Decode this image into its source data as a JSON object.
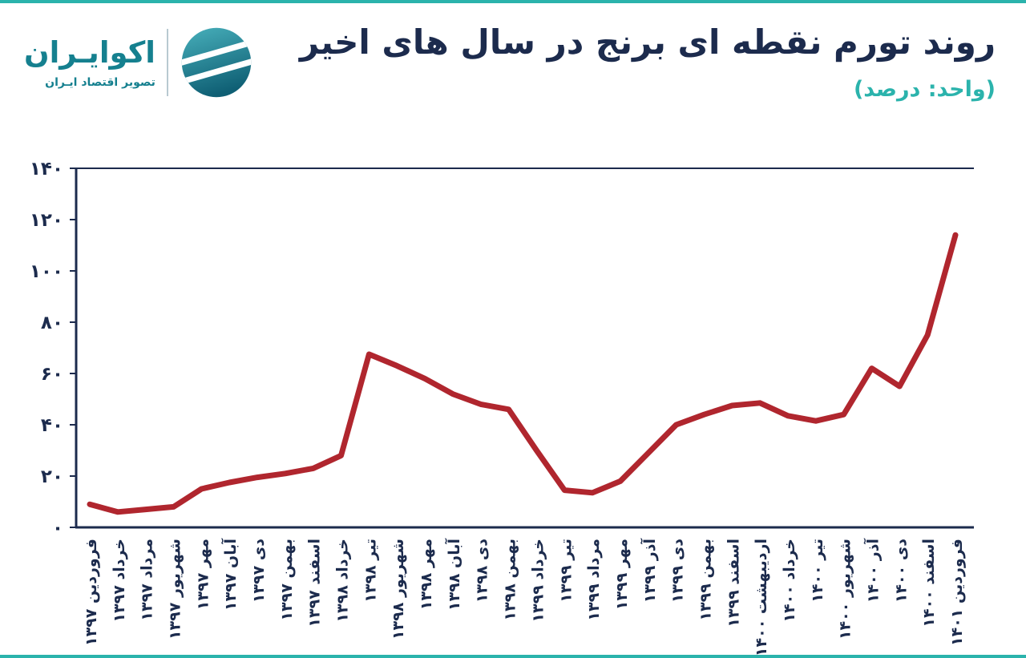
{
  "header": {
    "title": "روند تورم نقطه ای برنج در سال های اخیر",
    "unit_label": "(واحد: درصد)",
    "logo": {
      "name": "اکوایـران",
      "tagline": "تصویر اقتصاد ایـران",
      "mark": "ecoiran-circle-swoosh-icon"
    }
  },
  "colors": {
    "accent_teal": "#2bb3ac",
    "axis_navy": "#1c2b4d",
    "line_red": "#b0262e",
    "logo_teal": "#15808f",
    "background": "#ffffff"
  },
  "chart_data": {
    "type": "line",
    "title": "روند تورم نقطه ای برنج در سال های اخیر",
    "unit": "درصد",
    "categories": [
      "فروردین ۱۳۹۷",
      "خرداد ۱۳۹۷",
      "مرداد ۱۳۹۷",
      "شهریور ۱۳۹۷",
      "مهر ۱۳۹۷",
      "آبان ۱۳۹۷",
      "دی ۱۳۹۷",
      "بهمن ۱۳۹۷",
      "اسفند ۱۳۹۷",
      "خرداد ۱۳۹۸",
      "تیر ۱۳۹۸",
      "شهریور ۱۳۹۸",
      "مهر ۱۳۹۸",
      "آبان ۱۳۹۸",
      "دی ۱۳۹۸",
      "بهمن ۱۳۹۸",
      "خرداد ۱۳۹۹",
      "تیر ۱۳۹۹",
      "مرداد ۱۳۹۹",
      "مهر ۱۳۹۹",
      "آذر ۱۳۹۹",
      "دی ۱۳۹۹",
      "بهمن ۱۳۹۹",
      "اسفند ۱۳۹۹",
      "اردیبهشت ۱۴۰۰",
      "خرداد ۱۴۰۰",
      "تیر ۱۴۰۰",
      "شهریور ۱۴۰۰",
      "آذر ۱۴۰۰",
      "دی ۱۴۰۰",
      "اسفند ۱۴۰۰",
      "فروردین ۱۴۰۱"
    ],
    "values": [
      9,
      6,
      7,
      8,
      15,
      17.5,
      19.5,
      21,
      23,
      28,
      67.5,
      63,
      58,
      52,
      48,
      46,
      30,
      14.5,
      13.5,
      18,
      29,
      40,
      44,
      47.5,
      48.5,
      43.5,
      41.5,
      44,
      62,
      55,
      75,
      114
    ],
    "ylim": [
      0,
      140
    ],
    "y_ticks": [
      0,
      20,
      40,
      60,
      80,
      100,
      120,
      140
    ],
    "y_tick_labels": [
      "۰",
      "۲۰",
      "۴۰",
      "۶۰",
      "۸۰",
      "۱۰۰",
      "۱۲۰",
      "۱۴۰"
    ],
    "grid": false,
    "legend": "none"
  }
}
